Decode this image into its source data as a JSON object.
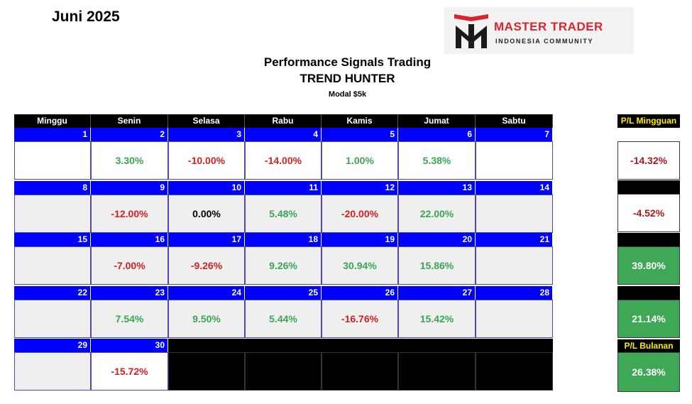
{
  "month_title": "Juni 2025",
  "logo": {
    "line1": "MASTER TRADER",
    "line2": "INDONESIA COMMUNITY"
  },
  "title": {
    "line1": "Performance Signals Trading",
    "line2": "TREND HUNTER",
    "line3": "Modal $5k"
  },
  "days": [
    "Minggu",
    "Senin",
    "Selasa",
    "Rabu",
    "Kamis",
    "Jumat",
    "Sabtu"
  ],
  "weeks": [
    {
      "dates": [
        "1",
        "2",
        "3",
        "4",
        "5",
        "6",
        "7"
      ],
      "values": [
        "",
        "3.30%",
        "-10.00%",
        "-14.00%",
        "1.00%",
        "5.38%",
        ""
      ]
    },
    {
      "dates": [
        "8",
        "9",
        "10",
        "11",
        "12",
        "13",
        "14"
      ],
      "values": [
        "",
        "-12.00%",
        "0.00%",
        "5.48%",
        "-20.00%",
        "22.00%",
        ""
      ]
    },
    {
      "dates": [
        "15",
        "16",
        "17",
        "18",
        "19",
        "20",
        "21"
      ],
      "values": [
        "",
        "-7.00%",
        "-9.26%",
        "9.26%",
        "30.94%",
        "15.86%",
        ""
      ]
    },
    {
      "dates": [
        "22",
        "23",
        "24",
        "25",
        "26",
        "27",
        "28"
      ],
      "values": [
        "",
        "7.54%",
        "9.50%",
        "5.44%",
        "-16.76%",
        "15.42%",
        ""
      ]
    },
    {
      "dates": [
        "29",
        "30"
      ],
      "values": [
        "",
        "-15.72%"
      ]
    }
  ],
  "pl_weekly_label": "P/L Mingguan",
  "pl_weekly": [
    "-14.32%",
    "-4.52%",
    "39.80%",
    "21.14%"
  ],
  "pl_monthly_label": "P/L Bulanan",
  "pl_monthly": "26.38%",
  "colors": {
    "positive": "#3aa655",
    "negative": "#d42020",
    "date_bar": "#0000ff",
    "header": "#000000",
    "pl_label": "#ffee00",
    "pl_green": "#3fa856"
  }
}
